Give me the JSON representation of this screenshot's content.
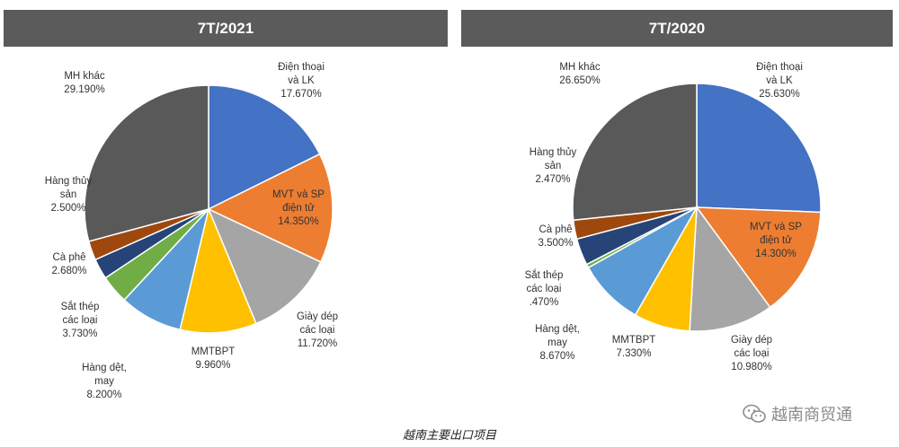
{
  "caption": "越南主要出口项目",
  "watermark": {
    "text": "越南商贸通",
    "icon": "wechat-icon"
  },
  "chart_data": [
    {
      "type": "pie",
      "title": "7T/2021",
      "slices": [
        {
          "label_lines": [
            "Điện thoại",
            "và LK"
          ],
          "value_label": "17.670%",
          "value": 17.67,
          "color": "#4472c4"
        },
        {
          "label_lines": [
            "MVT và SP",
            "điện tử"
          ],
          "value_label": "14.350%",
          "value": 14.35,
          "color": "#ed7d31"
        },
        {
          "label_lines": [
            "Giày dép",
            "các loại"
          ],
          "value_label": "11.720%",
          "value": 11.72,
          "color": "#a5a5a5"
        },
        {
          "label_lines": [
            "MMTBPT"
          ],
          "value_label": "9.960%",
          "value": 9.96,
          "color": "#ffc000"
        },
        {
          "label_lines": [
            "Hàng dệt,",
            "may"
          ],
          "value_label": "8.200%",
          "value": 8.2,
          "color": "#5b9bd5"
        },
        {
          "label_lines": [
            "Sắt thép",
            "các loại"
          ],
          "value_label": "3.730%",
          "value": 3.73,
          "color": "#70ad47"
        },
        {
          "label_lines": [
            "Cà phê"
          ],
          "value_label": "2.680%",
          "value": 2.68,
          "color": "#264478"
        },
        {
          "label_lines": [
            "Hàng thủy",
            "sản"
          ],
          "value_label": "2.500%",
          "value": 2.5,
          "color": "#9e480e"
        },
        {
          "label_lines": [
            "MH khác"
          ],
          "value_label": "29.190%",
          "value": 29.19,
          "color": "#595959"
        }
      ]
    },
    {
      "type": "pie",
      "title": "7T/2020",
      "slices": [
        {
          "label_lines": [
            "Điện thoại",
            "và LK"
          ],
          "value_label": "25.630%",
          "value": 25.63,
          "color": "#4472c4"
        },
        {
          "label_lines": [
            "MVT và SP",
            "điện tử"
          ],
          "value_label": "14.300%",
          "value": 14.3,
          "color": "#ed7d31"
        },
        {
          "label_lines": [
            "Giày dép",
            "các loại"
          ],
          "value_label": "10.980%",
          "value": 10.98,
          "color": "#a5a5a5"
        },
        {
          "label_lines": [
            "MMTBPT"
          ],
          "value_label": "7.330%",
          "value": 7.33,
          "color": "#ffc000"
        },
        {
          "label_lines": [
            "Hàng dệt,",
            "may"
          ],
          "value_label": "8.670%",
          "value": 8.67,
          "color": "#5b9bd5"
        },
        {
          "label_lines": [
            "Sắt thép",
            "các loại"
          ],
          "value_label": ".470%",
          "value": 0.47,
          "color": "#70ad47"
        },
        {
          "label_lines": [
            "Cà phê"
          ],
          "value_label": "3.500%",
          "value": 3.5,
          "color": "#264478"
        },
        {
          "label_lines": [
            "Hàng thủy",
            "sản"
          ],
          "value_label": "2.470%",
          "value": 2.47,
          "color": "#9e480e"
        },
        {
          "label_lines": [
            "MH khác"
          ],
          "value_label": "26.650%",
          "value": 26.65,
          "color": "#595959"
        }
      ]
    }
  ]
}
